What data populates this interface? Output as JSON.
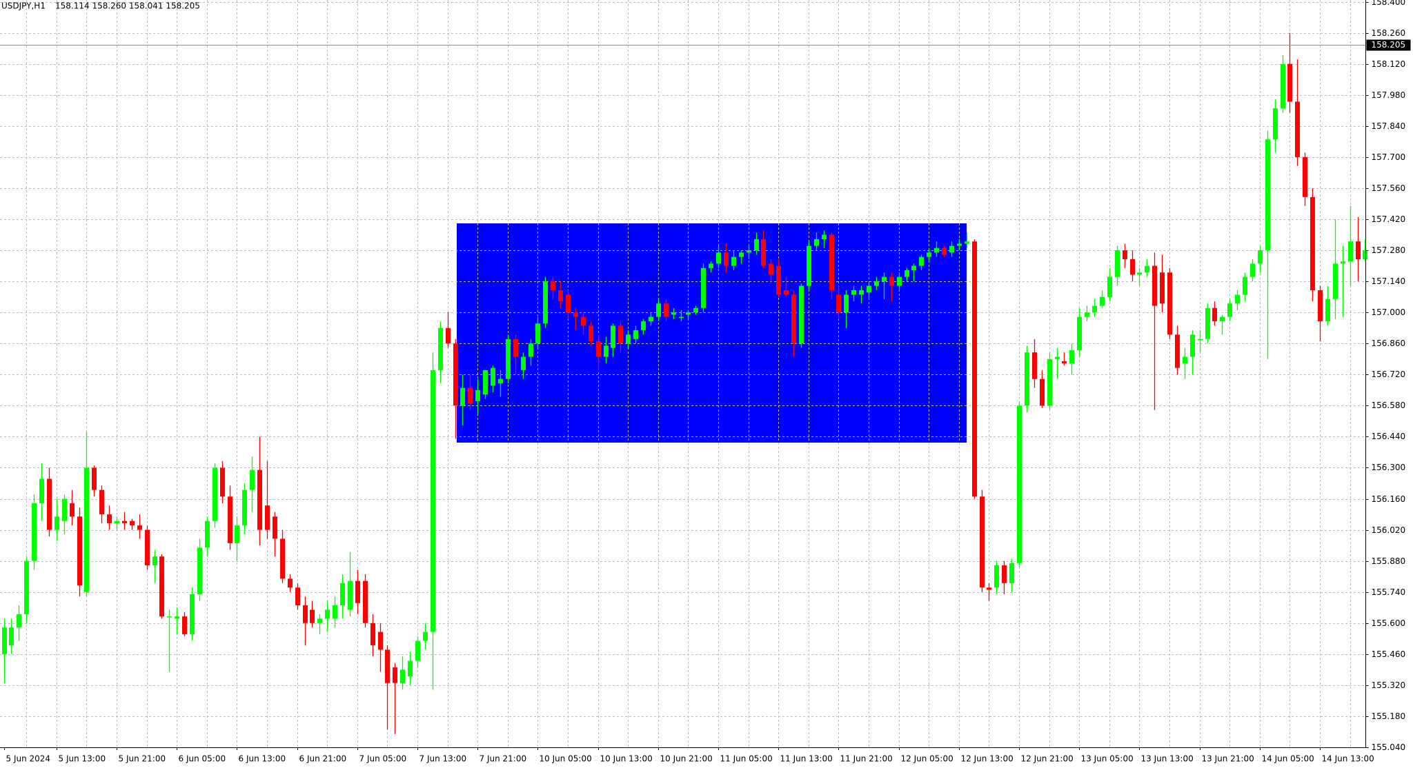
{
  "chart_data": {
    "type": "candlestick",
    "title": "USDJPY,H1",
    "subtitle": "158.114 158.260 158.041 158.205",
    "categories": [
      "5 Jun 2024",
      null,
      null,
      null,
      null,
      null,
      null,
      "5 Jun 13:00",
      null,
      null,
      null,
      null,
      null,
      null,
      null,
      "5 Jun 21:00",
      null,
      null,
      null,
      null,
      null,
      null,
      null,
      "6 Jun 05:00",
      null,
      null,
      null,
      null,
      null,
      null,
      null,
      "6 Jun 13:00",
      null,
      null,
      null,
      null,
      null,
      null,
      null,
      "6 Jun 21:00",
      null,
      null,
      null,
      null,
      null,
      null,
      null,
      "7 Jun 05:00",
      null,
      null,
      null,
      null,
      null,
      null,
      null,
      "7 Jun 13:00",
      null,
      null,
      null,
      null,
      null,
      null,
      null,
      "7 Jun 21:00",
      null,
      null,
      null,
      null,
      null,
      null,
      null,
      "10 Jun 05:00",
      null,
      null,
      null,
      null,
      null,
      null,
      null,
      "10 Jun 13:00",
      null,
      null,
      null,
      null,
      null,
      null,
      null,
      "10 Jun 21:00",
      null,
      null,
      null,
      null,
      null,
      null,
      null,
      "11 Jun 05:00",
      null,
      null,
      null,
      null,
      null,
      null,
      null,
      "11 Jun 13:00",
      null,
      null,
      null,
      null,
      null,
      null,
      null,
      "11 Jun 21:00",
      null,
      null,
      null,
      null,
      null,
      null,
      null,
      "12 Jun 05:00",
      null,
      null,
      null,
      null,
      null,
      null,
      null,
      "12 Jun 13:00",
      null,
      null,
      null,
      null,
      null,
      null,
      null,
      "12 Jun 21:00",
      null,
      null,
      null,
      null,
      null,
      null,
      null,
      "13 Jun 05:00",
      null,
      null,
      null,
      null,
      null,
      null,
      null,
      "13 Jun 13:00",
      null,
      null,
      null,
      null,
      null,
      null,
      null,
      "13 Jun 21:00",
      null,
      null,
      null,
      null,
      null,
      null,
      null,
      "14 Jun 05:00",
      null,
      null,
      null,
      null,
      null,
      null,
      null,
      "14 Jun 13:00",
      null,
      null,
      null,
      null,
      null,
      null
    ],
    "open": [
      155.46,
      155.5,
      155.58,
      155.64,
      155.88,
      156.14,
      156.25,
      156.02,
      156.06,
      156.14,
      156.08,
      155.74,
      156.3,
      156.2,
      156.09,
      156.05,
      156.06,
      156.06,
      156.04,
      156.02,
      155.86,
      155.9,
      155.63,
      155.62,
      155.63,
      155.55,
      155.73,
      155.94,
      156.06,
      156.3,
      156.17,
      155.96,
      156.04,
      156.2,
      156.29,
      156.13,
      156.08,
      155.98,
      155.8,
      155.76,
      155.68,
      155.66,
      155.6,
      155.62,
      155.62,
      155.68,
      155.66,
      155.79,
      155.79,
      155.6,
      155.56,
      155.48,
      155.4,
      155.33,
      155.36,
      155.43,
      155.52,
      155.56,
      156.74,
      156.93,
      156.86,
      156.58,
      156.66,
      156.6,
      156.63,
      156.67,
      156.68,
      156.7,
      156.88,
      156.74,
      156.8,
      156.86,
      156.95,
      157.14,
      157.1,
      157.08,
      157.0,
      156.98,
      156.94,
      156.87,
      156.8,
      156.84,
      156.94,
      156.86,
      156.88,
      156.92,
      156.96,
      156.98,
      157.04,
      156.99,
      156.98,
      156.99,
      157.0,
      157.02,
      157.2,
      157.22,
      157.27,
      157.21,
      157.25,
      157.27,
      157.28,
      157.33,
      157.22,
      157.21,
      157.1,
      157.08,
      156.86,
      157.12,
      157.3,
      157.33,
      157.35,
      157.08,
      157.0,
      157.08,
      157.08,
      157.09,
      157.12,
      157.14,
      157.16,
      157.12,
      157.16,
      157.19,
      157.21,
      157.25,
      157.27,
      157.29,
      157.27,
      157.3,
      157.31,
      157.32,
      156.17,
      155.76,
      155.76,
      155.86,
      155.78,
      155.87,
      156.58,
      156.82,
      156.7,
      156.58,
      156.79,
      156.78,
      156.77,
      156.83,
      156.98,
      157.0,
      157.03,
      157.07,
      157.16,
      157.28,
      157.24,
      157.17,
      157.18,
      157.21,
      157.18,
      157.18,
      156.9,
      156.77,
      156.8,
      156.88,
      156.88,
      157.02,
      156.96,
      156.98,
      157.04,
      157.08,
      157.16,
      157.22,
      157.28,
      157.78,
      157.92,
      158.12,
      157.95,
      157.7,
      157.52,
      157.1,
      156.96,
      157.06,
      157.22,
      157.23,
      157.32,
      157.24
    ],
    "high": [
      155.62,
      155.62,
      155.68,
      155.9,
      156.18,
      156.32,
      156.3,
      156.16,
      156.18,
      156.2,
      156.12,
      156.46,
      156.31,
      156.22,
      156.13,
      156.08,
      156.1,
      156.07,
      156.09,
      156.04,
      155.93,
      155.91,
      155.66,
      155.67,
      155.65,
      155.76,
      155.98,
      156.08,
      156.32,
      156.33,
      156.22,
      156.08,
      156.23,
      156.35,
      156.44,
      156.33,
      156.1,
      156.02,
      155.82,
      155.78,
      155.72,
      155.7,
      155.64,
      155.7,
      155.72,
      155.82,
      155.92,
      155.84,
      155.82,
      155.64,
      155.6,
      155.5,
      155.42,
      155.45,
      155.47,
      155.54,
      155.6,
      156.82,
      156.96,
      157.0,
      156.88,
      156.72,
      156.72,
      156.7,
      156.74,
      156.76,
      156.74,
      156.9,
      156.9,
      156.82,
      156.88,
      156.98,
      157.16,
      157.16,
      157.14,
      157.1,
      157.02,
      157.0,
      156.96,
      156.9,
      156.89,
      156.95,
      156.96,
      156.92,
      156.94,
      156.97,
      157.0,
      157.06,
      157.06,
      157.02,
      157.01,
      157.01,
      157.03,
      157.22,
      157.23,
      157.3,
      157.31,
      157.28,
      157.28,
      157.3,
      157.36,
      157.37,
      157.24,
      157.24,
      157.16,
      157.1,
      157.13,
      157.32,
      157.36,
      157.37,
      157.36,
      157.12,
      157.1,
      157.12,
      157.12,
      157.14,
      157.16,
      157.18,
      157.18,
      157.18,
      157.2,
      157.22,
      157.26,
      157.29,
      157.32,
      157.3,
      157.32,
      157.33,
      157.36,
      157.33,
      156.2,
      155.78,
      155.88,
      155.88,
      155.89,
      156.6,
      156.85,
      156.88,
      156.74,
      156.82,
      156.84,
      156.82,
      156.86,
      157.02,
      157.03,
      157.06,
      157.1,
      157.2,
      157.3,
      157.31,
      157.28,
      157.2,
      157.24,
      157.27,
      157.26,
      157.2,
      156.94,
      156.84,
      156.92,
      156.92,
      157.04,
      157.05,
      156.99,
      157.06,
      157.1,
      157.18,
      157.24,
      157.3,
      157.82,
      157.96,
      158.16,
      158.26,
      158.14,
      157.72,
      157.56,
      157.12,
      157.12,
      157.42,
      157.3,
      157.48,
      157.43,
      157.33
    ],
    "low": [
      155.33,
      155.46,
      155.52,
      155.6,
      155.84,
      156.06,
      155.99,
      155.97,
      156.0,
      156.04,
      155.72,
      155.72,
      156.17,
      156.05,
      156.02,
      156.02,
      156.02,
      156.02,
      155.98,
      155.84,
      155.78,
      155.62,
      155.38,
      155.55,
      155.54,
      155.52,
      155.7,
      155.9,
      156.03,
      156.14,
      155.93,
      155.88,
      156.0,
      156.1,
      155.95,
      155.98,
      155.9,
      155.78,
      155.74,
      155.66,
      155.5,
      155.58,
      155.55,
      155.56,
      155.58,
      155.62,
      155.63,
      155.64,
      155.58,
      155.45,
      155.38,
      155.12,
      155.1,
      155.3,
      155.32,
      155.4,
      155.48,
      155.3,
      156.68,
      156.84,
      156.43,
      156.49,
      156.56,
      156.54,
      156.61,
      156.64,
      156.62,
      156.68,
      156.72,
      156.7,
      156.76,
      156.84,
      156.93,
      157.06,
      157.02,
      156.97,
      156.92,
      156.9,
      156.85,
      156.74,
      156.77,
      156.8,
      156.82,
      156.84,
      156.86,
      156.9,
      156.94,
      156.96,
      156.96,
      156.97,
      156.96,
      156.97,
      156.99,
      157.0,
      157.18,
      157.2,
      157.18,
      157.19,
      157.22,
      157.24,
      157.26,
      157.2,
      157.13,
      157.07,
      157.07,
      156.8,
      156.84,
      157.1,
      157.28,
      157.29,
      157.06,
      156.97,
      156.93,
      157.05,
      157.04,
      157.06,
      157.1,
      157.06,
      157.05,
      157.1,
      157.14,
      157.14,
      157.19,
      157.23,
      157.25,
      157.25,
      157.25,
      157.28,
      157.29,
      156.16,
      155.74,
      155.7,
      155.73,
      155.73,
      155.74,
      155.85,
      156.55,
      156.66,
      156.57,
      156.56,
      156.7,
      156.76,
      156.72,
      156.8,
      156.96,
      156.98,
      157.02,
      157.05,
      157.12,
      157.2,
      157.14,
      157.12,
      157.16,
      156.56,
      157.0,
      156.88,
      156.72,
      156.7,
      156.72,
      156.82,
      156.86,
      156.94,
      156.9,
      156.96,
      157.01,
      157.05,
      157.14,
      157.18,
      156.79,
      157.72,
      157.9,
      157.9,
      157.66,
      157.48,
      157.05,
      156.87,
      156.94,
      156.97,
      156.98,
      157.12,
      157.14,
      157.23
    ],
    "close": [
      155.58,
      155.58,
      155.64,
      155.88,
      156.14,
      156.25,
      156.02,
      156.08,
      156.16,
      156.08,
      155.77,
      156.3,
      156.2,
      156.09,
      156.05,
      156.06,
      156.05,
      156.04,
      156.02,
      155.86,
      155.9,
      155.63,
      155.63,
      155.63,
      155.55,
      155.73,
      155.94,
      156.06,
      156.3,
      156.17,
      155.96,
      156.04,
      156.2,
      156.29,
      156.02,
      156.02,
      155.98,
      155.8,
      155.76,
      155.68,
      155.6,
      155.6,
      155.62,
      155.66,
      155.68,
      155.78,
      155.79,
      155.69,
      155.6,
      155.5,
      155.48,
      155.33,
      155.33,
      155.39,
      155.43,
      155.52,
      155.56,
      156.74,
      156.93,
      156.86,
      156.58,
      156.66,
      156.59,
      156.65,
      156.74,
      156.75,
      156.7,
      156.88,
      156.8,
      156.8,
      156.86,
      156.95,
      157.14,
      157.1,
      157.05,
      157.0,
      156.98,
      156.94,
      156.87,
      156.8,
      156.85,
      156.94,
      156.86,
      156.9,
      156.92,
      156.96,
      156.98,
      157.04,
      156.98,
      157.0,
      156.98,
      157.0,
      157.02,
      157.2,
      157.22,
      157.27,
      157.21,
      157.25,
      157.27,
      157.28,
      157.33,
      157.21,
      157.17,
      157.08,
      157.08,
      156.86,
      157.12,
      157.3,
      157.33,
      157.35,
      157.1,
      157.0,
      157.08,
      157.1,
      157.1,
      157.12,
      157.14,
      157.16,
      157.12,
      157.16,
      157.19,
      157.21,
      157.25,
      157.27,
      157.29,
      157.26,
      157.3,
      157.31,
      157.32,
      156.17,
      155.76,
      155.75,
      155.86,
      155.78,
      155.87,
      156.58,
      156.82,
      156.7,
      156.58,
      156.79,
      156.8,
      156.77,
      156.83,
      156.98,
      157.0,
      157.03,
      157.07,
      157.16,
      157.28,
      157.24,
      157.17,
      157.18,
      157.21,
      157.03,
      157.04,
      156.9,
      156.75,
      156.8,
      156.9,
      156.88,
      157.02,
      156.96,
      156.98,
      157.04,
      157.08,
      157.16,
      157.22,
      157.28,
      157.78,
      157.92,
      158.12,
      157.95,
      157.7,
      157.52,
      157.1,
      156.96,
      157.06,
      157.22,
      157.23,
      157.32,
      157.24,
      157.28
    ],
    "up_color": "#00ff00",
    "down_color": "#ff0000",
    "price_line": 158.205,
    "ylim": [
      155.04,
      158.4
    ],
    "yticks": [
      {
        "value": 158.4,
        "label": "158.400"
      },
      {
        "value": 158.26,
        "label": "158.260"
      },
      {
        "value": 158.12,
        "label": "158.120"
      },
      {
        "value": 157.98,
        "label": "157.980"
      },
      {
        "value": 157.84,
        "label": "157.840"
      },
      {
        "value": 157.7,
        "label": "157.700"
      },
      {
        "value": 157.56,
        "label": "157.560"
      },
      {
        "value": 157.42,
        "label": "157.420"
      },
      {
        "value": 157.28,
        "label": "157.280"
      },
      {
        "value": 157.14,
        "label": "157.140"
      },
      {
        "value": 157,
        "label": "157.000"
      },
      {
        "value": 156.86,
        "label": "156.860"
      },
      {
        "value": 156.72,
        "label": "156.720"
      },
      {
        "value": 156.58,
        "label": "156.580"
      },
      {
        "value": 156.44,
        "label": "156.440"
      },
      {
        "value": 156.3,
        "label": "156.300"
      },
      {
        "value": 156.16,
        "label": "156.160"
      },
      {
        "value": 156.02,
        "label": "156.020"
      },
      {
        "value": 155.88,
        "label": "155.880"
      },
      {
        "value": 155.74,
        "label": "155.740"
      },
      {
        "value": 155.6,
        "label": "155.600"
      },
      {
        "value": 155.46,
        "label": "155.460"
      },
      {
        "value": 155.32,
        "label": "155.320"
      },
      {
        "value": 155.18,
        "label": "155.180"
      },
      {
        "value": 155.04,
        "label": "155.040"
      }
    ],
    "grid": true
  }
}
